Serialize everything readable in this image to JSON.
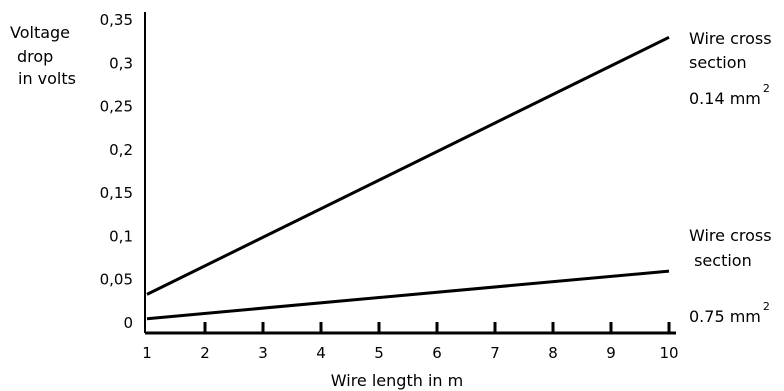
{
  "chart_data": {
    "type": "line",
    "title": "",
    "ylabel_lines": [
      "Voltage",
      "drop",
      "in volts"
    ],
    "xlabel": "Wire length in m",
    "xlim": [
      1,
      10
    ],
    "ylim": [
      0,
      0.35
    ],
    "x_ticks": [
      1,
      2,
      3,
      4,
      5,
      6,
      7,
      8,
      9,
      10
    ],
    "y_ticks": [
      0,
      0.05,
      0.1,
      0.15,
      0.2,
      0.25,
      0.3,
      0.35
    ],
    "x_tick_labels": [
      "1",
      "2",
      "3",
      "4",
      "5",
      "6",
      "7",
      "8",
      "9",
      "10"
    ],
    "y_tick_labels": [
      "0",
      "0,05",
      "0,1",
      "0,15",
      "0,2",
      "0,25",
      "0,3",
      "0,35"
    ],
    "grid": false,
    "series": [
      {
        "x": [
          1,
          10
        ],
        "values": [
          0.033,
          0.33
        ],
        "label_lines": [
          "Wire cross",
          "section",
          "0.14 mm"
        ],
        "label_sup": "2",
        "color": "#000000"
      },
      {
        "x": [
          1,
          10
        ],
        "values": [
          0.005,
          0.06
        ],
        "label_lines": [
          "Wire cross",
          " section",
          "0.75 mm"
        ],
        "label_sup": "2",
        "color": "#000000"
      }
    ]
  }
}
